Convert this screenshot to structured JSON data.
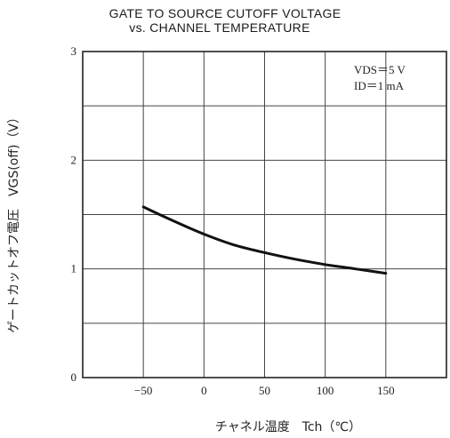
{
  "chart_data": {
    "type": "line",
    "title": "GATE TO SOURCE CUTOFF VOLTAGE",
    "subtitle": "vs. CHANNEL TEMPERATURE",
    "xlabel": "チャネル温度　Tch（℃）",
    "ylabel": "ゲートカットオフ電圧　VGS(off)（V）",
    "x_ticks": [
      "−50",
      "0",
      "50",
      "100",
      "150"
    ],
    "y_ticks": [
      "0",
      "1",
      "2",
      "3"
    ],
    "xlim": [
      -100,
      200
    ],
    "ylim": [
      0,
      3
    ],
    "grid": true,
    "conditions": [
      "VDS＝5 V",
      "ID＝1 mA"
    ],
    "series": [
      {
        "x": [
          -50,
          -25,
          0,
          25,
          50,
          75,
          100,
          125,
          150
        ],
        "y": [
          1.57,
          1.44,
          1.32,
          1.22,
          1.15,
          1.09,
          1.04,
          1.0,
          0.96
        ]
      }
    ]
  }
}
